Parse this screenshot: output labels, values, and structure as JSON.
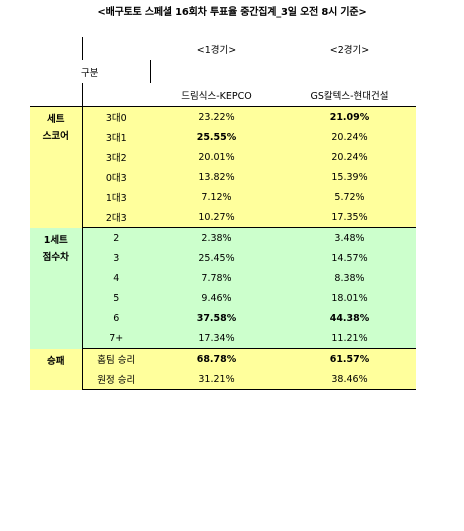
{
  "title": "<배구토토 스페셜 16회차 투표율 중간집계_3일 오전 8시 기준>",
  "header": {
    "category_label": "구분",
    "game1_label": "<1경기>",
    "game2_label": "<2경기>",
    "game1_teams": "드림식스-KEPCO",
    "game2_teams": "GS칼텍스-현대건설"
  },
  "sections": [
    {
      "name": "세트\n스코어",
      "rows": [
        {
          "label": "3대0",
          "g1": "23.22%",
          "g2": "21.09%",
          "g1_bold": false,
          "g2_bold": true
        },
        {
          "label": "3대1",
          "g1": "25.55%",
          "g2": "20.24%",
          "g1_bold": true,
          "g2_bold": false
        },
        {
          "label": "3대2",
          "g1": "20.01%",
          "g2": "20.24%",
          "g1_bold": false,
          "g2_bold": false
        },
        {
          "label": "0대3",
          "g1": "13.82%",
          "g2": "15.39%",
          "g1_bold": false,
          "g2_bold": false
        },
        {
          "label": "1대3",
          "g1": "7.12%",
          "g2": "5.72%",
          "g1_bold": false,
          "g2_bold": false
        },
        {
          "label": "2대3",
          "g1": "10.27%",
          "g2": "17.35%",
          "g1_bold": false,
          "g2_bold": false
        }
      ]
    },
    {
      "name": "1세트\n점수차",
      "rows": [
        {
          "label": "2",
          "g1": "2.38%",
          "g2": "3.48%",
          "g1_bold": false,
          "g2_bold": false
        },
        {
          "label": "3",
          "g1": "25.45%",
          "g2": "14.57%",
          "g1_bold": false,
          "g2_bold": false
        },
        {
          "label": "4",
          "g1": "7.78%",
          "g2": "8.38%",
          "g1_bold": false,
          "g2_bold": false
        },
        {
          "label": "5",
          "g1": "9.46%",
          "g2": "18.01%",
          "g1_bold": false,
          "g2_bold": false
        },
        {
          "label": "6",
          "g1": "37.58%",
          "g2": "44.38%",
          "g1_bold": true,
          "g2_bold": true
        },
        {
          "label": "7+",
          "g1": "17.34%",
          "g2": "11.21%",
          "g1_bold": false,
          "g2_bold": false
        }
      ]
    },
    {
      "name": "승패",
      "rows": [
        {
          "label": "홈팀 승리",
          "g1": "68.78%",
          "g2": "61.57%",
          "g1_bold": true,
          "g2_bold": true
        },
        {
          "label": "원정 승리",
          "g1": "31.21%",
          "g2": "38.46%",
          "g1_bold": false,
          "g2_bold": false
        }
      ]
    }
  ]
}
